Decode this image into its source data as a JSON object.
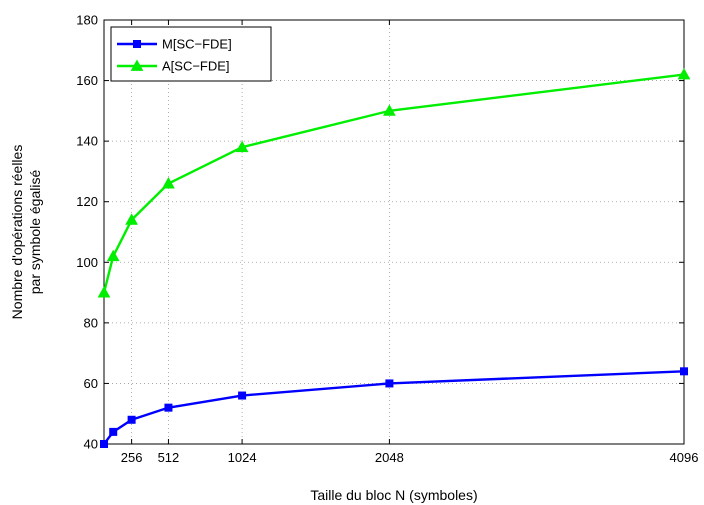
{
  "chart_data": {
    "type": "line",
    "xlabel": "Taille du bloc N  (symboles)",
    "ylabel_lines": [
      "Nombre d'opérations réelles",
      "par symbole égalisé"
    ],
    "xlim": [
      64,
      4096
    ],
    "ylim": [
      40,
      180
    ],
    "xticks": [
      256,
      512,
      1024,
      2048,
      4096
    ],
    "yticks": [
      40,
      60,
      80,
      100,
      120,
      140,
      160,
      180
    ],
    "grid": true,
    "legend_position": "top-left",
    "series": [
      {
        "name": "M[SC−FDE]",
        "color": "#0000ff",
        "marker": "square",
        "x": [
          64,
          128,
          256,
          512,
          1024,
          2048,
          4096
        ],
        "y": [
          40,
          44,
          48,
          52,
          56,
          60,
          64
        ]
      },
      {
        "name": "A[SC−FDE]",
        "color": "#00ee00",
        "marker": "triangle",
        "x": [
          64,
          128,
          256,
          512,
          1024,
          2048,
          4096
        ],
        "y": [
          90,
          102,
          114,
          126,
          138,
          150,
          162
        ]
      }
    ]
  }
}
